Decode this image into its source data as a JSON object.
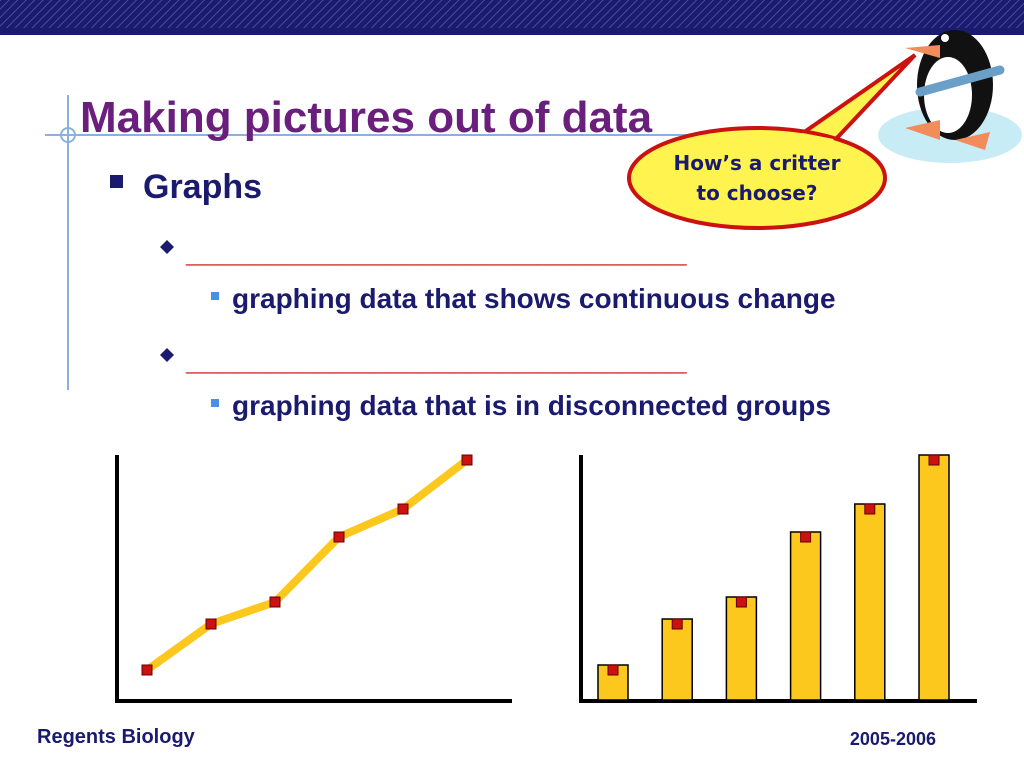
{
  "title": "Making pictures out of data",
  "bullets": [
    "Graphs",
    "______________________________",
    "graphing data that shows continuous change",
    "______________________________",
    "graphing data that is in disconnected groups"
  ],
  "callout": {
    "line1": "How’s a critter",
    "line2": "to choose?"
  },
  "footer": {
    "left": "Regents Biology",
    "right": "2005-2006"
  },
  "chart_data": [
    {
      "type": "line",
      "values": [
        3,
        7.6,
        9.8,
        16.3,
        19.1,
        24
      ],
      "ylim": [
        0,
        25
      ],
      "color": "#fcc81e",
      "marker_color": "#cc1111"
    },
    {
      "type": "bar",
      "values": [
        3,
        7.6,
        9.8,
        16.3,
        19.1,
        24
      ],
      "ylim": [
        0,
        25
      ],
      "color": "#fcc81e",
      "marker_color": "#cc1111"
    }
  ]
}
